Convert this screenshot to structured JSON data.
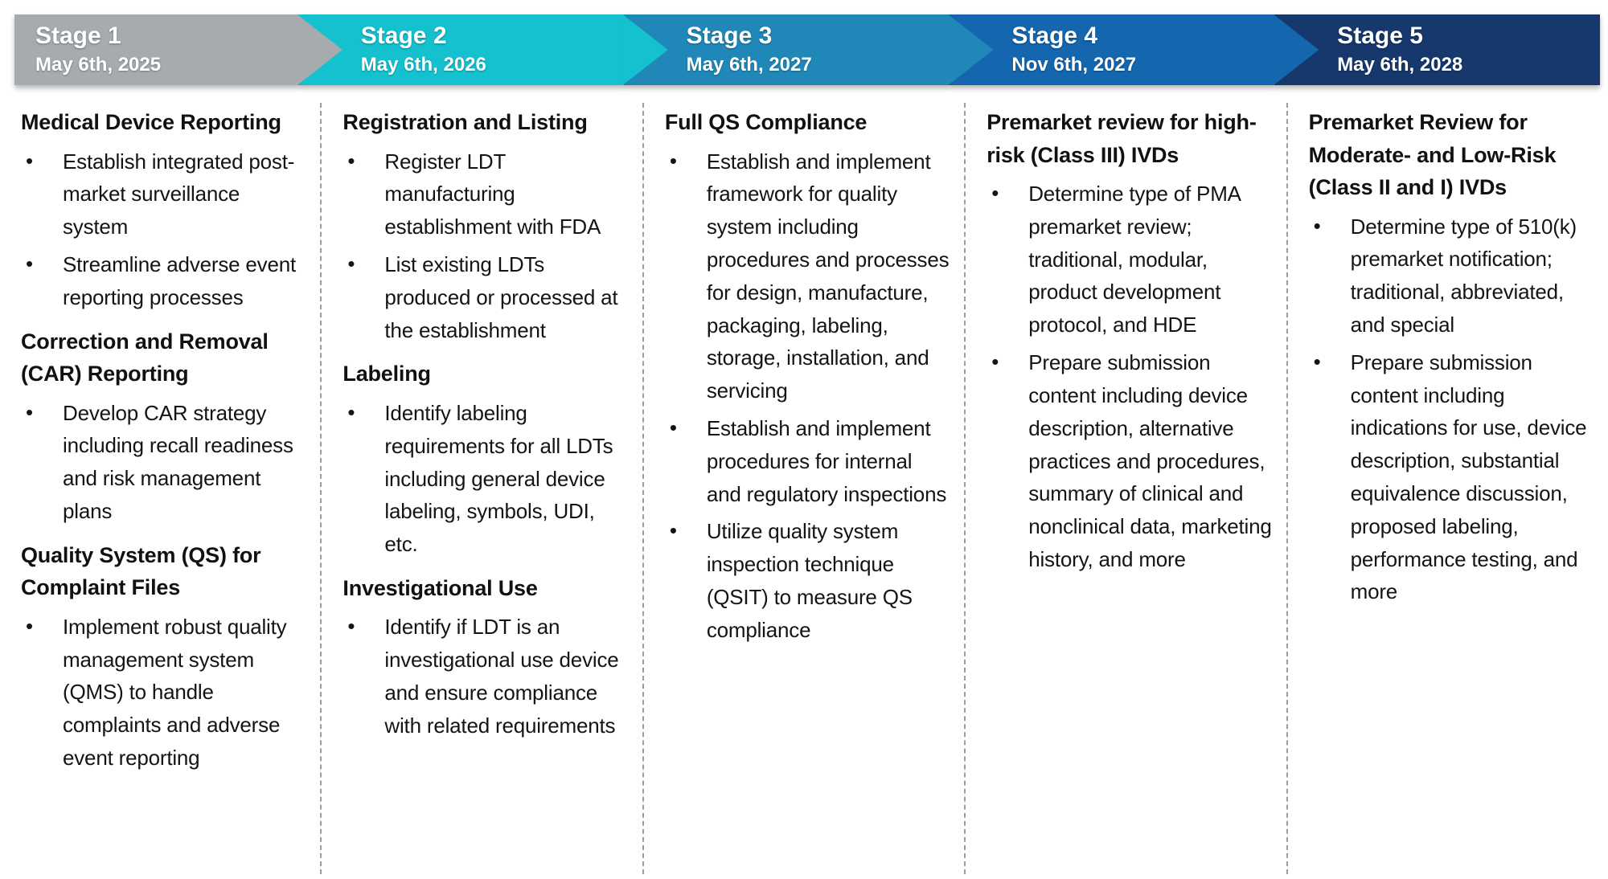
{
  "diagram_type": "staged-timeline",
  "text_color": "#141414",
  "separator_color": "#9a9da0",
  "bullet_char": "•",
  "stages": [
    {
      "label": "Stage 1",
      "date": "May 6th, 2025",
      "color": "#a7abae",
      "sections": [
        {
          "heading": "Medical Device Reporting",
          "bullets": [
            "Establish integrated post-market surveillance system",
            "Streamline adverse event reporting processes"
          ]
        },
        {
          "heading": "Correction and Removal (CAR) Reporting",
          "bullets": [
            "Develop CAR strategy including recall readiness and risk management plans"
          ]
        },
        {
          "heading": "Quality System (QS) for Complaint Files",
          "bullets": [
            "Implement robust quality management system (QMS) to handle complaints and adverse event reporting"
          ]
        }
      ]
    },
    {
      "label": "Stage 2",
      "date": "May 6th, 2026",
      "color": "#15c1cf",
      "sections": [
        {
          "heading": "Registration and Listing",
          "bullets": [
            "Register LDT manufacturing establishment with FDA",
            "List existing LDTs produced or processed at the establishment"
          ]
        },
        {
          "heading": "Labeling",
          "bullets": [
            "Identify labeling requirements for all LDTs including general device labeling, symbols, UDI, etc."
          ]
        },
        {
          "heading": "Investigational Use",
          "bullets": [
            "Identify if LDT is an investigational use device and ensure compliance with related requirements"
          ]
        }
      ]
    },
    {
      "label": "Stage 3",
      "date": "May 6th, 2027",
      "color": "#2088b8",
      "sections": [
        {
          "heading": "Full QS Compliance",
          "bullets": [
            "Establish and implement framework for quality system including procedures and processes for design, manufacture, packaging, labeling, storage, installation, and servicing",
            "Establish and implement procedures for internal and regulatory inspections",
            "Utilize quality system inspection technique (QSIT) to measure QS compliance"
          ]
        }
      ]
    },
    {
      "label": "Stage 4",
      "date": "Nov 6th, 2027",
      "color": "#1466af",
      "sections": [
        {
          "heading": "Premarket review for high-risk (Class III) IVDs",
          "bullets": [
            "Determine type of PMA premarket review; traditional, modular, product development protocol, and HDE",
            "Prepare submission content including device description, alternative practices and procedures, summary of clinical and nonclinical data, marketing history, and more"
          ]
        }
      ]
    },
    {
      "label": "Stage 5",
      "date": "May 6th, 2028",
      "color": "#16386d",
      "sections": [
        {
          "heading": "Premarket Review for Moderate- and Low-Risk (Class II and I) IVDs",
          "bullets": [
            "Determine type of 510(k) premarket notification; traditional, abbreviated, and special",
            "Prepare submission content including indications for use, device description, substantial equivalence discussion, proposed labeling, performance testing, and more"
          ]
        }
      ]
    }
  ]
}
